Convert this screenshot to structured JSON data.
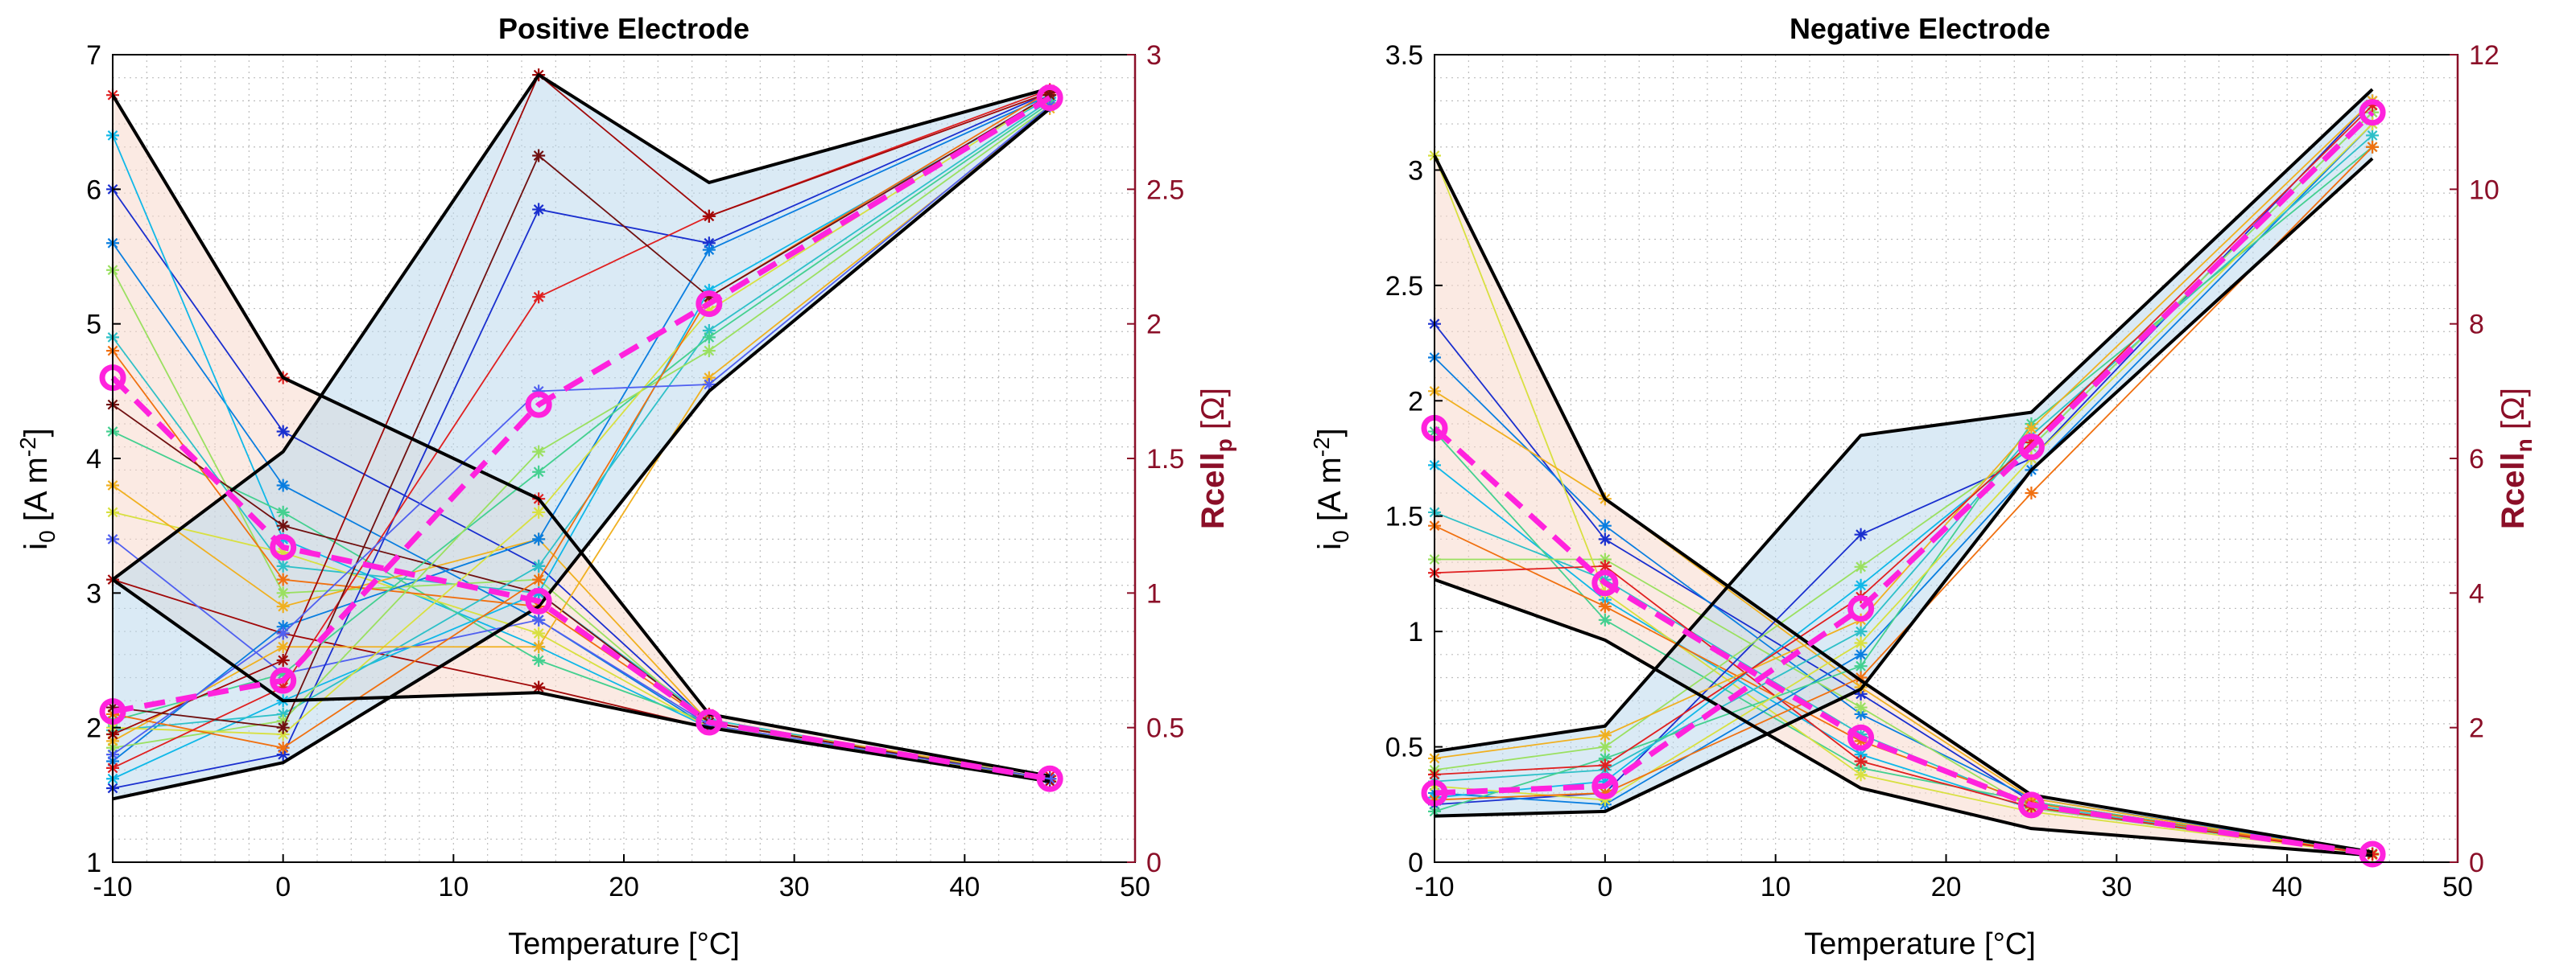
{
  "temperatures": [
    -10,
    0,
    15,
    25,
    45
  ],
  "colors": {
    "boundary": "#000000",
    "mean": "#ff22dd",
    "fill_i0": "#bcd9ec",
    "fill_r": "#f8d8cc",
    "right_axis": "#8b0f28",
    "grid": "#bdbdbd"
  },
  "chart_data": [
    {
      "type": "line",
      "title": "Positive Electrode",
      "xlabel": "Temperature [°C]",
      "ylabel_left": "i",
      "ylabel_left_sub": "0",
      "ylabel_left_unit": " [A m",
      "ylabel_left_sup": "-2",
      "ylabel_left_end": "]",
      "ylabel_right": "Rcell",
      "ylabel_right_sub": "p",
      "ylabel_right_unit": " [Ω]",
      "xlim": [
        -10,
        50
      ],
      "xticks": [
        "-10",
        "0",
        "10",
        "20",
        "30",
        "40",
        "50"
      ],
      "ylim_left": [
        1,
        7
      ],
      "yticks_left": [
        "1",
        "2",
        "3",
        "4",
        "5",
        "6",
        "7"
      ],
      "ylim_right": [
        0,
        3
      ],
      "yticks_right": [
        "0",
        "0.5",
        "1",
        "1.5",
        "2",
        "2.5",
        "3"
      ],
      "i0_min": [
        1.47,
        1.74,
        2.9,
        4.5,
        6.6
      ],
      "i0_max": [
        3.1,
        4.05,
        6.85,
        6.05,
        6.75
      ],
      "i0_mean": [
        2.12,
        2.35,
        4.4,
        5.15,
        6.68
      ],
      "r_min": [
        1.05,
        0.6,
        0.63,
        0.5,
        0.3
      ],
      "r_max": [
        2.85,
        1.8,
        1.35,
        0.55,
        0.32
      ],
      "r_mean": [
        1.8,
        1.17,
        0.97,
        0.52,
        0.31
      ],
      "i0_cells": [
        [
          1.55,
          1.8,
          5.85,
          5.6,
          6.72
        ],
        [
          1.75,
          2.75,
          3.4,
          5.55,
          6.7
        ],
        [
          1.62,
          2.2,
          3.0,
          5.25,
          6.68
        ],
        [
          1.98,
          2.1,
          3.2,
          4.95,
          6.66
        ],
        [
          2.05,
          2.4,
          3.9,
          4.9,
          6.64
        ],
        [
          1.85,
          2.05,
          4.05,
          4.8,
          6.62
        ],
        [
          2.0,
          1.95,
          3.6,
          5.1,
          6.7
        ],
        [
          1.9,
          2.6,
          2.6,
          4.6,
          6.6
        ],
        [
          2.1,
          1.85,
          3.1,
          5.2,
          6.73
        ],
        [
          1.7,
          2.3,
          5.2,
          5.8,
          6.74
        ],
        [
          1.95,
          2.5,
          6.85,
          5.8,
          6.72
        ],
        [
          2.15,
          2.0,
          6.25,
          5.2,
          6.7
        ],
        [
          1.8,
          2.7,
          4.5,
          4.55,
          6.62
        ]
      ],
      "r_cells": [
        [
          2.5,
          1.6,
          1.1,
          0.52,
          0.31
        ],
        [
          2.3,
          1.4,
          0.9,
          0.5,
          0.31
        ],
        [
          2.7,
          1.2,
          0.8,
          0.5,
          0.3
        ],
        [
          1.95,
          1.1,
          1.0,
          0.53,
          0.31
        ],
        [
          1.6,
          1.3,
          0.75,
          0.52,
          0.31
        ],
        [
          2.2,
          1.0,
          1.05,
          0.51,
          0.3
        ],
        [
          1.3,
          1.15,
          0.85,
          0.5,
          0.31
        ],
        [
          1.4,
          0.95,
          1.2,
          0.52,
          0.32
        ],
        [
          1.9,
          1.05,
          0.95,
          0.52,
          0.31
        ],
        [
          2.85,
          1.8,
          1.35,
          0.55,
          0.32
        ],
        [
          1.05,
          0.85,
          0.65,
          0.5,
          0.3
        ],
        [
          1.7,
          1.25,
          1.0,
          0.52,
          0.31
        ],
        [
          1.2,
          0.7,
          0.9,
          0.51,
          0.31
        ]
      ]
    },
    {
      "type": "line",
      "title": "Negative Electrode",
      "xlabel": "Temperature [°C]",
      "ylabel_left": "i",
      "ylabel_left_sub": "0",
      "ylabel_left_unit": " [A m",
      "ylabel_left_sup": "-2",
      "ylabel_left_end": "]",
      "ylabel_right": "Rcell",
      "ylabel_right_sub": "n",
      "ylabel_right_unit": " [Ω]",
      "xlim": [
        -10,
        50
      ],
      "xticks": [
        "-10",
        "0",
        "10",
        "20",
        "30",
        "40",
        "50"
      ],
      "ylim_left": [
        0,
        3.5
      ],
      "yticks_left": [
        "0",
        "0.5",
        "1",
        "1.5",
        "2",
        "2.5",
        "3",
        "3.5"
      ],
      "ylim_right": [
        0,
        12
      ],
      "yticks_right": [
        "0",
        "2",
        "4",
        "6",
        "8",
        "10",
        "12"
      ],
      "i0_min": [
        0.2,
        0.22,
        0.75,
        1.7,
        3.05
      ],
      "i0_max": [
        0.48,
        0.59,
        1.85,
        1.95,
        3.35
      ],
      "i0_mean": [
        0.3,
        0.33,
        1.1,
        1.8,
        3.25
      ],
      "r_min": [
        4.2,
        3.3,
        1.1,
        0.5,
        0.1
      ],
      "r_max": [
        10.5,
        5.4,
        2.7,
        1.0,
        0.15
      ],
      "r_mean": [
        6.45,
        4.15,
        1.85,
        0.85,
        0.12
      ],
      "i0_cells": [
        [
          0.25,
          0.3,
          1.42,
          1.75,
          3.3
        ],
        [
          0.3,
          0.25,
          0.9,
          1.7,
          3.2
        ],
        [
          0.28,
          0.35,
          1.2,
          1.8,
          3.25
        ],
        [
          0.35,
          0.4,
          1.0,
          1.85,
          3.15
        ],
        [
          0.22,
          0.45,
          0.85,
          1.9,
          3.1
        ],
        [
          0.4,
          0.5,
          1.28,
          1.8,
          3.25
        ],
        [
          0.33,
          0.27,
          0.95,
          1.75,
          3.2
        ],
        [
          0.45,
          0.55,
          1.05,
          1.88,
          3.3
        ],
        [
          0.27,
          0.3,
          0.8,
          1.6,
          3.1
        ],
        [
          0.38,
          0.42,
          1.15,
          1.82,
          3.28
        ]
      ],
      "r_cells": [
        [
          8.0,
          4.8,
          2.5,
          0.9,
          0.12
        ],
        [
          7.5,
          5.0,
          2.2,
          0.95,
          0.13
        ],
        [
          5.9,
          3.9,
          1.6,
          0.8,
          0.12
        ],
        [
          5.2,
          4.2,
          1.9,
          0.85,
          0.11
        ],
        [
          6.4,
          3.6,
          1.4,
          0.9,
          0.12
        ],
        [
          4.5,
          4.5,
          2.3,
          0.8,
          0.13
        ],
        [
          10.5,
          4.0,
          1.3,
          0.75,
          0.12
        ],
        [
          7.0,
          5.4,
          2.6,
          0.95,
          0.11
        ],
        [
          5.0,
          3.8,
          1.8,
          0.88,
          0.12
        ],
        [
          4.3,
          4.4,
          1.5,
          0.82,
          0.12
        ]
      ]
    }
  ]
}
